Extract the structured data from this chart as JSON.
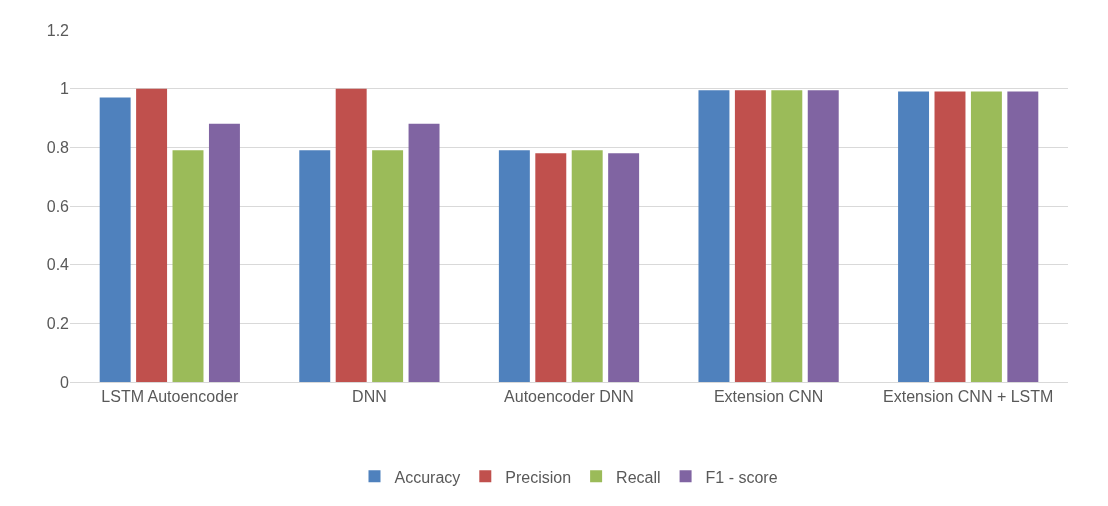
{
  "chart_data": {
    "type": "bar",
    "categories": [
      "LSTM Autoencoder",
      "DNN",
      "Autoencoder DNN",
      "Extension CNN",
      "Extension CNN + LSTM"
    ],
    "series": [
      {
        "name": "Accuracy",
        "color": "#4f81bd",
        "values": [
          0.97,
          0.79,
          0.79,
          0.995,
          0.99
        ]
      },
      {
        "name": "Precision",
        "color": "#c0504d",
        "values": [
          1.0,
          1.0,
          0.78,
          0.995,
          0.99
        ]
      },
      {
        "name": "Recall",
        "color": "#9bbb59",
        "values": [
          0.79,
          0.79,
          0.79,
          0.995,
          0.99
        ]
      },
      {
        "name": "F1 - score",
        "color": "#8064a2",
        "values": [
          0.88,
          0.88,
          0.78,
          0.995,
          0.99
        ]
      }
    ],
    "ylim": [
      0,
      1.2
    ],
    "yticks": [
      0,
      0.2,
      0.4,
      0.6,
      0.8,
      1,
      1.2
    ],
    "grid": "y",
    "legend": "bottom"
  }
}
